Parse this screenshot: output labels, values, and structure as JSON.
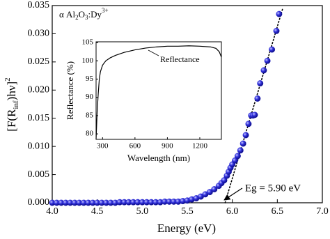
{
  "chart_data": [
    {
      "type": "scatter",
      "xlabel": "Energy (eV)",
      "ylabel": [
        "[F(R",
        "inf",
        ")hν]",
        "2"
      ],
      "annotation": [
        "α  Al",
        "2",
        "O",
        "3",
        ":Dy",
        "3+"
      ],
      "eg_label": "Eg = 5.90 eV",
      "color": "#2020d0",
      "x": [
        4.0,
        4.05,
        4.1,
        4.15,
        4.2,
        4.25,
        4.3,
        4.35,
        4.4,
        4.45,
        4.5,
        4.55,
        4.6,
        4.65,
        4.7,
        4.75,
        4.8,
        4.85,
        4.9,
        4.95,
        5.0,
        5.05,
        5.1,
        5.15,
        5.2,
        5.25,
        5.3,
        5.35,
        5.4,
        5.45,
        5.5,
        5.55,
        5.6,
        5.65,
        5.7,
        5.75,
        5.8,
        5.85,
        5.88,
        5.91,
        5.94,
        5.96,
        5.98,
        6.0,
        6.03,
        6.06,
        6.09,
        6.12,
        6.15,
        6.18,
        6.21,
        6.23,
        6.25,
        6.28,
        6.31,
        6.35,
        6.39,
        6.44,
        6.49,
        6.52
      ],
      "values": [
        0,
        0,
        0,
        0,
        0,
        0,
        0,
        0,
        0,
        0,
        0,
        0,
        0,
        0,
        0,
        0.0001,
        0.0001,
        0.0001,
        0.0001,
        0.0001,
        0.0001,
        0.0001,
        0.0001,
        0.0001,
        0.0001,
        0.0002,
        0.0002,
        0.0002,
        0.0002,
        0.0003,
        0.0004,
        0.0006,
        0.0008,
        0.0011,
        0.0015,
        0.0019,
        0.0024,
        0.003,
        0.0035,
        0.004,
        0.0048,
        0.0055,
        0.0062,
        0.0068,
        0.0075,
        0.0083,
        0.0093,
        0.0105,
        0.012,
        0.014,
        0.0155,
        0.0155,
        0.0156,
        0.0185,
        0.0212,
        0.0235,
        0.0252,
        0.0272,
        0.0305,
        0.0335
      ],
      "fit": {
        "x": [
          5.92,
          6.56
        ],
        "y": [
          0,
          0.0345
        ]
      },
      "xlim": [
        4.0,
        7.0
      ],
      "xticks": [
        {
          "value": 4,
          "label": "4.0"
        },
        {
          "value": 4.5,
          "label": "4.5"
        },
        {
          "value": 5,
          "label": "5.0"
        },
        {
          "value": 5.5,
          "label": "5.5"
        },
        {
          "value": 6,
          "label": "6.0"
        },
        {
          "value": 6.5,
          "label": "6.5"
        },
        {
          "value": 7,
          "label": "7.0"
        }
      ],
      "ylim": [
        0,
        0.035
      ],
      "yticks": [
        {
          "value": 0,
          "label": "0.000"
        },
        {
          "value": 0.005,
          "label": "0.005"
        },
        {
          "value": 0.01,
          "label": "0.010"
        },
        {
          "value": 0.015,
          "label": "0.015"
        },
        {
          "value": 0.02,
          "label": "0.020"
        },
        {
          "value": 0.025,
          "label": "0.025"
        },
        {
          "value": 0.03,
          "label": "0.030"
        },
        {
          "value": 0.035,
          "label": "0.035"
        }
      ]
    },
    {
      "type": "line",
      "xlabel": "Wavelength (nm)",
      "ylabel": "Reflectance (%)",
      "series_label": "Reflectance",
      "x": [
        240,
        250,
        260,
        270,
        280,
        300,
        330,
        370,
        420,
        500,
        600,
        700,
        800,
        900,
        1000,
        1100,
        1200,
        1300,
        1350,
        1380,
        1400
      ],
      "values": [
        78.5,
        86,
        91,
        95,
        97,
        98.8,
        100,
        100.8,
        101.5,
        102.3,
        103,
        103.5,
        103.8,
        104,
        104,
        104.1,
        104,
        103.8,
        103.4,
        102.5,
        101
      ],
      "xlim": [
        240,
        1400
      ],
      "xticks": [
        300,
        600,
        900,
        1200
      ],
      "ylim": [
        78.5,
        105.2
      ],
      "yticks": [
        80,
        85,
        90,
        95,
        100,
        105
      ]
    }
  ]
}
